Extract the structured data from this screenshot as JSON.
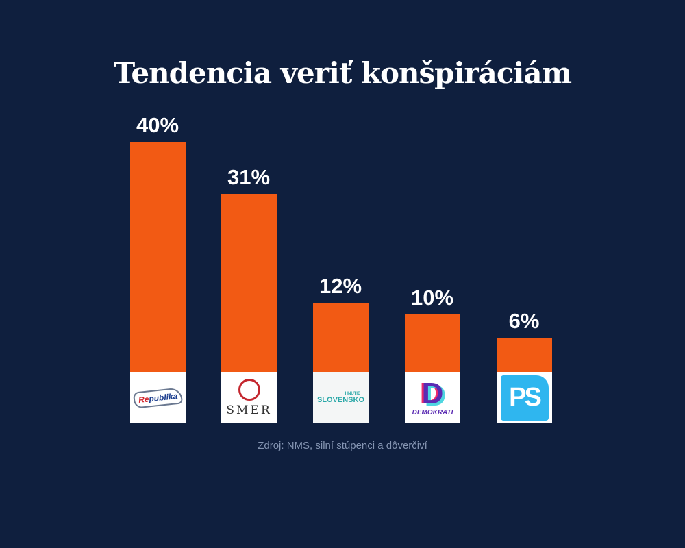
{
  "chart_data": {
    "type": "bar",
    "title": "Tendencia veriť konšpiráciám",
    "categories": [
      "Republika",
      "SMER",
      "Hnutie Slovensko",
      "Demokrati",
      "PS"
    ],
    "values": [
      40,
      31,
      12,
      10,
      6
    ],
    "value_labels": [
      "40%",
      "31%",
      "12%",
      "10%",
      "6%"
    ],
    "unit": "%",
    "grid": false,
    "bar_color": "#f25a14",
    "background_color": "#0f1f3e",
    "source": "Zdroj: NMS, silní stúpenci a dôverčiví"
  },
  "logos": {
    "republika": {
      "re": "Re",
      "rest": "publika"
    },
    "smer": {
      "text": "SMER"
    },
    "slovensko": {
      "small": "HNUTIE",
      "big": "SLOVENSKO"
    },
    "demokrati": {
      "letter": "D",
      "text": "DEMOKRATI"
    },
    "ps": {
      "text": "PS"
    }
  }
}
